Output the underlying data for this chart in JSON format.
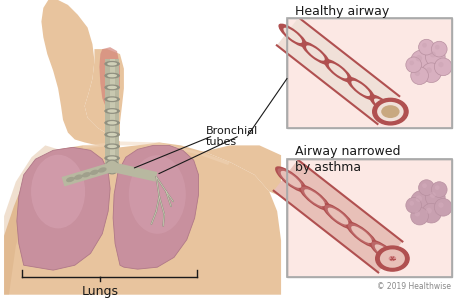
{
  "bg_color": "#ffffff",
  "title_healthy": "Healthy airway",
  "title_asthma": "Airway narrowed\nby asthma",
  "label_bronchial": "Bronchial\ntubes",
  "label_lungs": "Lungs",
  "copyright": "© 2019 Healthwise",
  "skin_light": "#f0d5b8",
  "skin_mid": "#e8c49e",
  "skin_shadow": "#d4a87a",
  "skin_neck": "#e8c49e",
  "muscle_red": "#d4857a",
  "lung_left_color": "#c8909e",
  "lung_right_color": "#c8909e",
  "lung_highlight": "#dba8b8",
  "lung_edge": "#b07888",
  "trachea_fill": "#b8b8a0",
  "trachea_ring": "#909080",
  "trachea_light": "#d0d0b8",
  "bronchi_fill": "#b8b8a0",
  "bronchi_ring": "#909080",
  "box_fill": "#fce8e4",
  "box_edge": "#aaaaaa",
  "airway_outer_light": "#e8c0b8",
  "airway_ring_dark": "#b05050",
  "airway_ring_mid": "#c87878",
  "airway_inner_white": "#f0e0d8",
  "airway_lumen_healthy": "#c8a880",
  "airway_lumen_asthma": "#d89090",
  "airway_asthma_outer": "#c88080",
  "bubble_fill": "#d8b0c0",
  "bubble_edge": "#b890a0",
  "bubble_fill2": "#c8a0b0",
  "text_color": "#1a1a1a",
  "line_color": "#333333"
}
